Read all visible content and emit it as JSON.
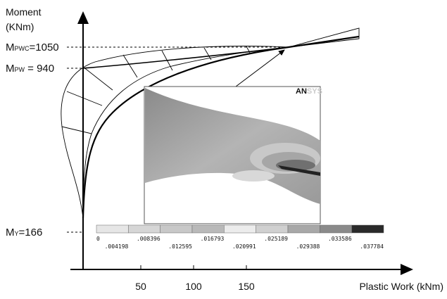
{
  "y_axis_label": {
    "line1": "Moment",
    "line2": "(KNm)"
  },
  "x_axis_label": "Plastic Work (kNm)",
  "levels": [
    {
      "main": "M",
      "sub": "PWC",
      "value": "=1050"
    },
    {
      "main": "M",
      "sub": "PW",
      "value": " = 940"
    },
    {
      "main": "M",
      "sub": "Y",
      "value": "=166"
    }
  ],
  "x_ticks": [
    "50",
    "100",
    "150"
  ],
  "inset": {
    "logo_bold": "AN",
    "logo_light": "SYS"
  },
  "colorbar": {
    "top_labels": [
      "0",
      ".008396",
      ".016793",
      ".025189",
      ".033586"
    ],
    "bottom_labels": [
      ".004198",
      ".012595",
      ".020991",
      ".029388",
      ".037784"
    ]
  }
}
